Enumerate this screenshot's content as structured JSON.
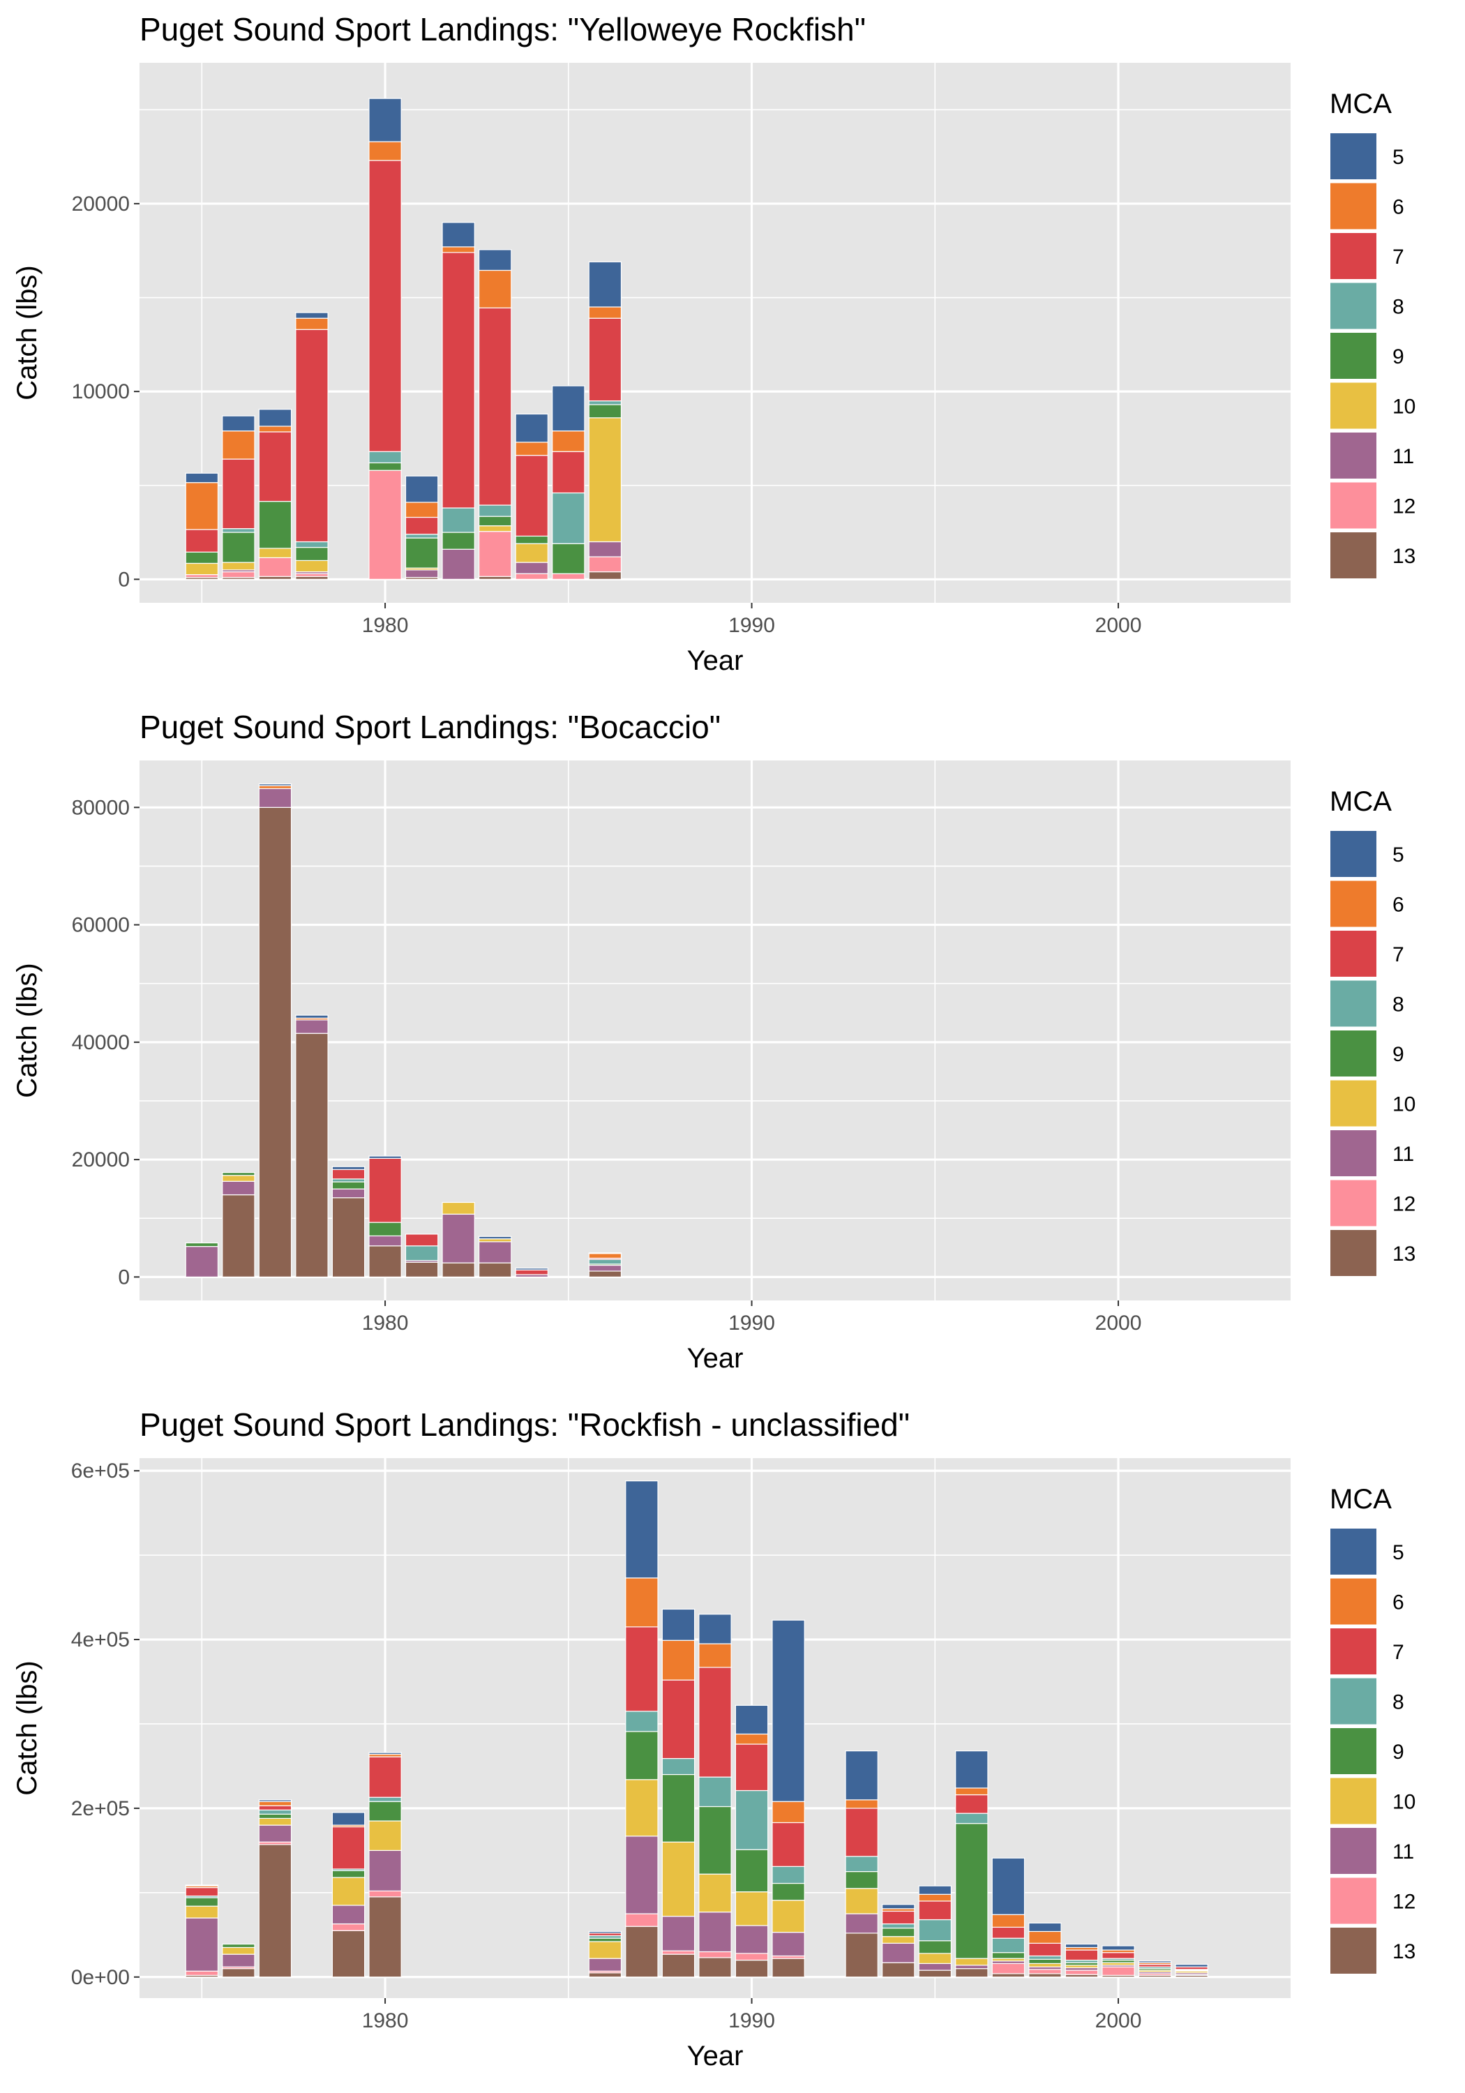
{
  "mca_levels": [
    "5",
    "6",
    "7",
    "8",
    "9",
    "10",
    "11",
    "12",
    "13"
  ],
  "colors": {
    "5": "#3e6598",
    "6": "#ee7b2c",
    "7": "#da4248",
    "8": "#6aaca4",
    "9": "#4a9142",
    "10": "#e8c042",
    "11": "#a06690",
    "12": "#fd8f9b",
    "13": "#8c6351",
    "panel_bg": "#e5e5e5",
    "grid": "#ffffff"
  },
  "legend_title": "MCA",
  "chart_data": [
    {
      "type": "bar",
      "stacked": true,
      "title": "Puget Sound Sport Landings: \"Yelloweye Rockfish\"",
      "xlabel": "Year",
      "ylabel": "Catch (lbs)",
      "xlim": [
        1973.3,
        2004.7
      ],
      "ylim": [
        -1250,
        27500
      ],
      "x_ticks": [
        1980,
        1990,
        2000
      ],
      "x_tick_labels": [
        "1980",
        "1990",
        "2000"
      ],
      "y_ticks": [
        0,
        10000,
        20000
      ],
      "y_tick_labels": [
        "0",
        "10000",
        "20000"
      ],
      "categories": [
        1975,
        1976,
        1977,
        1978,
        1980,
        1981,
        1982,
        1983,
        1984,
        1985,
        1986
      ],
      "series": [
        {
          "name": "13",
          "values": [
            100,
            100,
            150,
            150,
            0,
            100,
            0,
            150,
            0,
            0,
            400
          ]
        },
        {
          "name": "12",
          "values": [
            150,
            300,
            1000,
            150,
            5800,
            0,
            0,
            2400,
            300,
            300,
            800
          ]
        },
        {
          "name": "11",
          "values": [
            0,
            100,
            0,
            100,
            0,
            400,
            1600,
            0,
            600,
            0,
            800
          ]
        },
        {
          "name": "10",
          "values": [
            600,
            400,
            500,
            600,
            0,
            100,
            0,
            300,
            1000,
            0,
            6600
          ]
        },
        {
          "name": "9",
          "values": [
            600,
            1600,
            2500,
            700,
            400,
            1600,
            900,
            500,
            400,
            1600,
            700
          ]
        },
        {
          "name": "8",
          "values": [
            0,
            200,
            0,
            300,
            600,
            200,
            1300,
            600,
            0,
            2700,
            200
          ]
        },
        {
          "name": "7",
          "values": [
            1200,
            3700,
            3700,
            11300,
            15500,
            900,
            13600,
            10500,
            4300,
            2200,
            4400
          ]
        },
        {
          "name": "6",
          "values": [
            2500,
            1500,
            300,
            600,
            1000,
            800,
            300,
            2000,
            700,
            1100,
            600
          ]
        },
        {
          "name": "5",
          "values": [
            500,
            800,
            900,
            300,
            2300,
            1400,
            1300,
            1100,
            1500,
            2400,
            2400
          ]
        }
      ]
    },
    {
      "type": "bar",
      "stacked": true,
      "title": "Puget Sound Sport Landings: \"Bocaccio\"",
      "xlabel": "Year",
      "ylabel": "Catch (lbs)",
      "xlim": [
        1973.3,
        2004.7
      ],
      "ylim": [
        -4000,
        88000
      ],
      "x_ticks": [
        1980,
        1990,
        2000
      ],
      "x_tick_labels": [
        "1980",
        "1990",
        "2000"
      ],
      "y_ticks": [
        0,
        20000,
        40000,
        60000,
        80000
      ],
      "y_tick_labels": [
        "0",
        "20000",
        "40000",
        "60000",
        "80000"
      ],
      "categories": [
        1975,
        1976,
        1977,
        1978,
        1979,
        1980,
        1981,
        1982,
        1983,
        1984,
        1986
      ],
      "series": [
        {
          "name": "13",
          "values": [
            0,
            14000,
            80000,
            41500,
            13500,
            5300,
            2500,
            2400,
            2400,
            0,
            1000
          ]
        },
        {
          "name": "12",
          "values": [
            0,
            0,
            0,
            0,
            0,
            0,
            0,
            0,
            0,
            0,
            0
          ]
        },
        {
          "name": "11",
          "values": [
            5200,
            2300,
            3200,
            2300,
            1500,
            1700,
            300,
            8300,
            3600,
            400,
            1000
          ]
        },
        {
          "name": "10",
          "values": [
            0,
            1000,
            0,
            0,
            0,
            0,
            0,
            2000,
            500,
            0,
            0
          ]
        },
        {
          "name": "9",
          "values": [
            600,
            500,
            0,
            0,
            1200,
            2300,
            0,
            0,
            0,
            0,
            200
          ]
        },
        {
          "name": "8",
          "values": [
            0,
            0,
            0,
            0,
            500,
            0,
            2500,
            0,
            0,
            0,
            800
          ]
        },
        {
          "name": "7",
          "values": [
            0,
            0,
            0,
            0,
            1600,
            10900,
            2000,
            0,
            0,
            800,
            200
          ]
        },
        {
          "name": "6",
          "values": [
            0,
            0,
            500,
            300,
            0,
            0,
            0,
            0,
            0,
            0,
            800
          ]
        },
        {
          "name": "5",
          "values": [
            0,
            0,
            300,
            500,
            500,
            400,
            0,
            0,
            400,
            300,
            100
          ]
        }
      ]
    },
    {
      "type": "bar",
      "stacked": true,
      "title": "Puget Sound Sport Landings: \"Rockfish - unclassified\"",
      "xlabel": "Year",
      "ylabel": "Catch (lbs)",
      "xlim": [
        1973.3,
        2004.7
      ],
      "ylim": [
        -25000,
        615000
      ],
      "x_ticks": [
        1980,
        1990,
        2000
      ],
      "x_tick_labels": [
        "1980",
        "1990",
        "2000"
      ],
      "y_ticks": [
        0,
        200000,
        400000,
        600000
      ],
      "y_tick_labels": [
        "0e+00",
        "2e+05",
        "4e+05",
        "6e+05"
      ],
      "categories": [
        1975,
        1976,
        1977,
        1979,
        1980,
        1986,
        1987,
        1988,
        1989,
        1990,
        1991,
        1993,
        1994,
        1995,
        1996,
        1997,
        1998,
        1999,
        2000,
        2001,
        2002
      ],
      "series": [
        {
          "name": "13",
          "values": [
            2000,
            10000,
            157000,
            55000,
            95000,
            5000,
            60000,
            27000,
            23000,
            20000,
            22000,
            52000,
            17000,
            8000,
            10000,
            4000,
            4000,
            3000,
            2000,
            2000,
            2000
          ]
        },
        {
          "name": "12",
          "values": [
            5000,
            2000,
            3000,
            8000,
            7000,
            2000,
            15000,
            4000,
            7000,
            8000,
            3000,
            0,
            0,
            0,
            0,
            12000,
            5000,
            5000,
            10000,
            2000,
            1000
          ]
        },
        {
          "name": "11",
          "values": [
            63000,
            15000,
            20000,
            22000,
            48000,
            15000,
            92000,
            41000,
            47000,
            33000,
            28000,
            23000,
            23000,
            8000,
            4000,
            3000,
            3000,
            3000,
            2000,
            2000,
            2000
          ]
        },
        {
          "name": "10",
          "values": [
            14000,
            8000,
            8000,
            33000,
            35000,
            20000,
            67000,
            88000,
            45000,
            40000,
            38000,
            30000,
            8000,
            12000,
            8000,
            3000,
            4000,
            3000,
            3000,
            2000,
            2000
          ]
        },
        {
          "name": "9",
          "values": [
            10000,
            4000,
            5000,
            8000,
            23000,
            4000,
            57000,
            80000,
            80000,
            50000,
            20000,
            20000,
            10000,
            15000,
            160000,
            7000,
            5000,
            3000,
            3000,
            2000,
            1000
          ]
        },
        {
          "name": "8",
          "values": [
            2000,
            0,
            5000,
            2000,
            5000,
            3000,
            24000,
            19000,
            35000,
            70000,
            20000,
            18000,
            5000,
            25000,
            12000,
            17000,
            4000,
            3000,
            2000,
            2000,
            1000
          ]
        },
        {
          "name": "7",
          "values": [
            10000,
            0,
            5000,
            50000,
            48000,
            3000,
            100000,
            93000,
            130000,
            55000,
            52000,
            57000,
            15000,
            22000,
            22000,
            13000,
            15000,
            12000,
            7000,
            3000,
            3000
          ]
        },
        {
          "name": "6",
          "values": [
            2000,
            0,
            5000,
            2000,
            3000,
            0,
            58000,
            47000,
            28000,
            12000,
            25000,
            10000,
            3000,
            8000,
            8000,
            15000,
            14000,
            3000,
            3000,
            2000,
            0
          ]
        },
        {
          "name": "5",
          "values": [
            1000,
            0,
            2000,
            15000,
            2000,
            2000,
            115000,
            37000,
            35000,
            34000,
            215000,
            58000,
            5000,
            10000,
            44000,
            67000,
            10000,
            4000,
            5000,
            2000,
            3000
          ]
        }
      ]
    }
  ]
}
